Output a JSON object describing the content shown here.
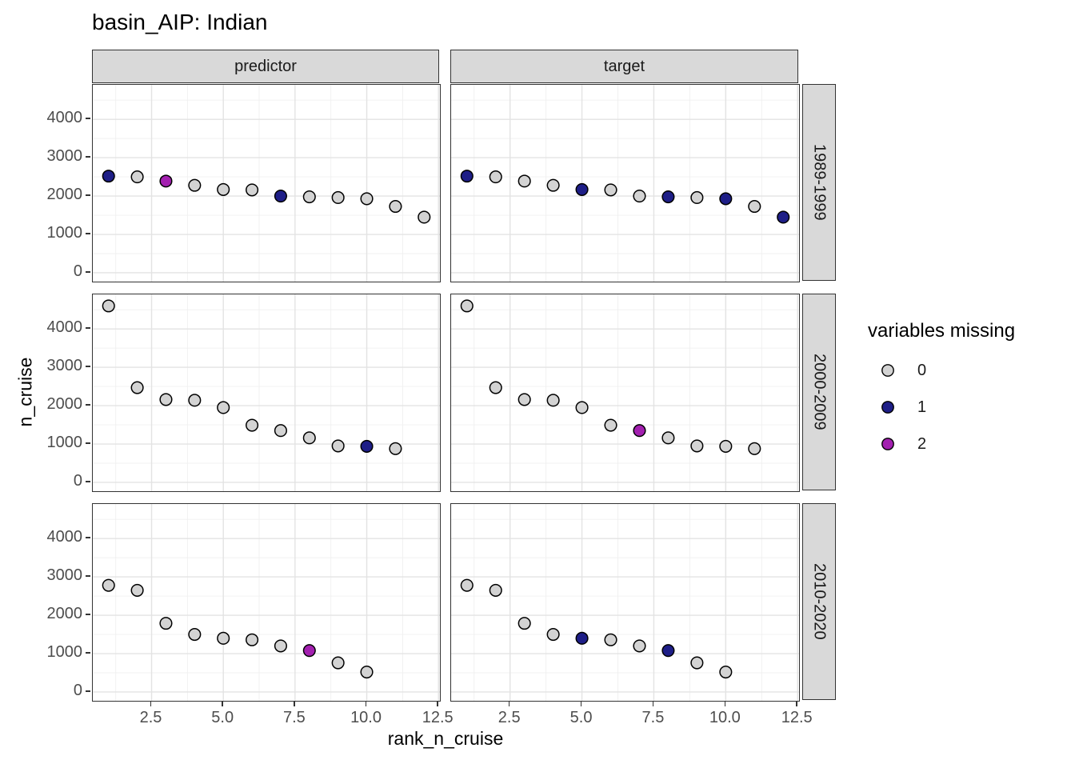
{
  "chart_data": {
    "type": "scatter",
    "title": "basin_AIP: Indian",
    "xlabel": "rank_n_cruise",
    "ylabel": "n_cruise",
    "facet_cols": [
      "predictor",
      "target"
    ],
    "facet_rows": [
      "1989-1999",
      "2000-2009",
      "2010-2020"
    ],
    "x_ticks": [
      {
        "value": 2.5,
        "label": "2.5"
      },
      {
        "value": 5.0,
        "label": "5.0"
      },
      {
        "value": 7.5,
        "label": "7.5"
      },
      {
        "value": 10.0,
        "label": "10.0"
      },
      {
        "value": 12.5,
        "label": "12.5"
      }
    ],
    "y_ticks": [
      {
        "value": 0,
        "label": "0"
      },
      {
        "value": 1000,
        "label": "1000"
      },
      {
        "value": 2000,
        "label": "2000"
      },
      {
        "value": 3000,
        "label": "3000"
      },
      {
        "value": 4000,
        "label": "4000"
      }
    ],
    "x_minor": [
      1.25,
      3.75,
      6.25,
      8.75,
      11.25
    ],
    "y_minor": [
      500,
      1500,
      2500,
      3500,
      4500
    ],
    "xlim": [
      0.45,
      12.55
    ],
    "ylim": [
      -230,
      4900
    ],
    "grid": true,
    "legend": {
      "title": "variables missing",
      "position": "right",
      "entries": [
        {
          "label": "0",
          "value": 0,
          "color": "#D3D3D3"
        },
        {
          "label": "1",
          "value": 1,
          "color": "#1E1E87"
        },
        {
          "label": "2",
          "value": 2,
          "color": "#A320B0"
        }
      ]
    },
    "point_outline": "#000000",
    "panels": [
      {
        "col": "predictor",
        "row": "1989-1999",
        "points": [
          [
            1,
            2520,
            1
          ],
          [
            2,
            2500,
            0
          ],
          [
            3,
            2390,
            2
          ],
          [
            4,
            2280,
            0
          ],
          [
            5,
            2170,
            0
          ],
          [
            6,
            2160,
            0
          ],
          [
            7,
            2000,
            1
          ],
          [
            8,
            1980,
            0
          ],
          [
            9,
            1960,
            0
          ],
          [
            10,
            1930,
            0
          ],
          [
            11,
            1730,
            0
          ],
          [
            12,
            1450,
            0
          ]
        ]
      },
      {
        "col": "target",
        "row": "1989-1999",
        "points": [
          [
            1,
            2520,
            1
          ],
          [
            2,
            2500,
            0
          ],
          [
            3,
            2390,
            0
          ],
          [
            4,
            2280,
            0
          ],
          [
            5,
            2170,
            1
          ],
          [
            6,
            2160,
            0
          ],
          [
            7,
            2000,
            0
          ],
          [
            8,
            1980,
            1
          ],
          [
            9,
            1960,
            0
          ],
          [
            10,
            1930,
            1
          ],
          [
            11,
            1730,
            0
          ],
          [
            12,
            1450,
            1
          ]
        ]
      },
      {
        "col": "predictor",
        "row": "2000-2009",
        "points": [
          [
            1,
            4600,
            0
          ],
          [
            2,
            2470,
            0
          ],
          [
            3,
            2160,
            0
          ],
          [
            4,
            2140,
            0
          ],
          [
            5,
            1950,
            0
          ],
          [
            6,
            1490,
            0
          ],
          [
            7,
            1350,
            0
          ],
          [
            8,
            1160,
            0
          ],
          [
            9,
            950,
            0
          ],
          [
            10,
            940,
            1
          ],
          [
            11,
            880,
            0
          ]
        ]
      },
      {
        "col": "target",
        "row": "2000-2009",
        "points": [
          [
            1,
            4600,
            0
          ],
          [
            2,
            2470,
            0
          ],
          [
            3,
            2160,
            0
          ],
          [
            4,
            2140,
            0
          ],
          [
            5,
            1950,
            0
          ],
          [
            6,
            1490,
            0
          ],
          [
            7,
            1350,
            2
          ],
          [
            8,
            1160,
            0
          ],
          [
            9,
            950,
            0
          ],
          [
            10,
            940,
            0
          ],
          [
            11,
            880,
            0
          ]
        ]
      },
      {
        "col": "predictor",
        "row": "2010-2020",
        "points": [
          [
            1,
            2780,
            0
          ],
          [
            2,
            2650,
            0
          ],
          [
            3,
            1790,
            0
          ],
          [
            4,
            1500,
            0
          ],
          [
            5,
            1400,
            0
          ],
          [
            6,
            1360,
            0
          ],
          [
            7,
            1200,
            0
          ],
          [
            8,
            1080,
            2
          ],
          [
            9,
            760,
            0
          ],
          [
            10,
            520,
            0
          ]
        ]
      },
      {
        "col": "target",
        "row": "2010-2020",
        "points": [
          [
            1,
            2780,
            0
          ],
          [
            2,
            2650,
            0
          ],
          [
            3,
            1790,
            0
          ],
          [
            4,
            1500,
            0
          ],
          [
            5,
            1400,
            1
          ],
          [
            6,
            1360,
            0
          ],
          [
            7,
            1200,
            0
          ],
          [
            8,
            1080,
            1
          ],
          [
            9,
            760,
            0
          ],
          [
            10,
            520,
            0
          ]
        ]
      }
    ]
  }
}
